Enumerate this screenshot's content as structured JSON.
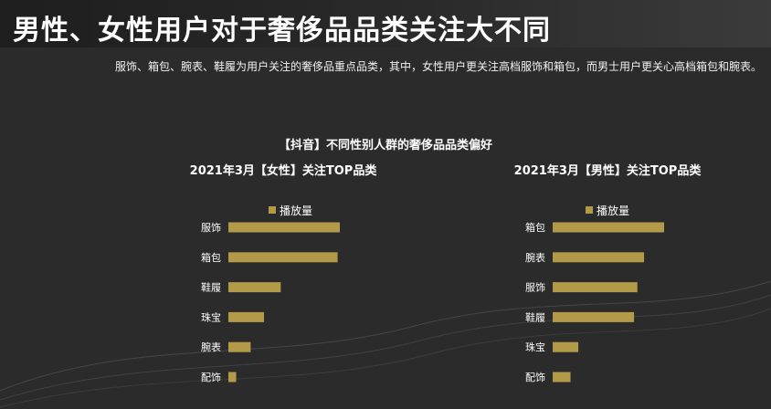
{
  "title": "男性、女性用户对于奢侈品品类关注大不同",
  "subtitle": "服饰、箱包、腕表、鞋履为用户关注的奢侈品重点品类，其中，女性用户更关注高档服饰和箱包，而男士用户更关心高档箱包和腕表。",
  "chart_heading": "【抖音】不同性别人群的奢侈品品类偏好",
  "colors": {
    "bar": "#b29a48",
    "background": "#2b2b2b",
    "text": "#ffffff"
  },
  "chart_data": [
    {
      "type": "bar",
      "orientation": "horizontal",
      "title": "2021年3月【女性】关注TOP品类",
      "categories": [
        "服饰",
        "箱包",
        "鞋履",
        "珠宝",
        "腕表",
        "配饰"
      ],
      "series": [
        {
          "name": "播放量",
          "values": [
            100,
            98,
            47,
            32,
            20,
            7
          ]
        }
      ],
      "xlim": [
        0,
        100
      ],
      "legend": "top",
      "grid": false
    },
    {
      "type": "bar",
      "orientation": "horizontal",
      "title": "2021年3月【男性】关注TOP品类",
      "categories": [
        "箱包",
        "腕表",
        "服饰",
        "鞋履",
        "珠宝",
        "配饰"
      ],
      "series": [
        {
          "name": "播放量",
          "values": [
            100,
            82,
            76,
            73,
            23,
            16
          ]
        }
      ],
      "xlim": [
        0,
        100
      ],
      "legend": "top",
      "grid": false
    }
  ]
}
